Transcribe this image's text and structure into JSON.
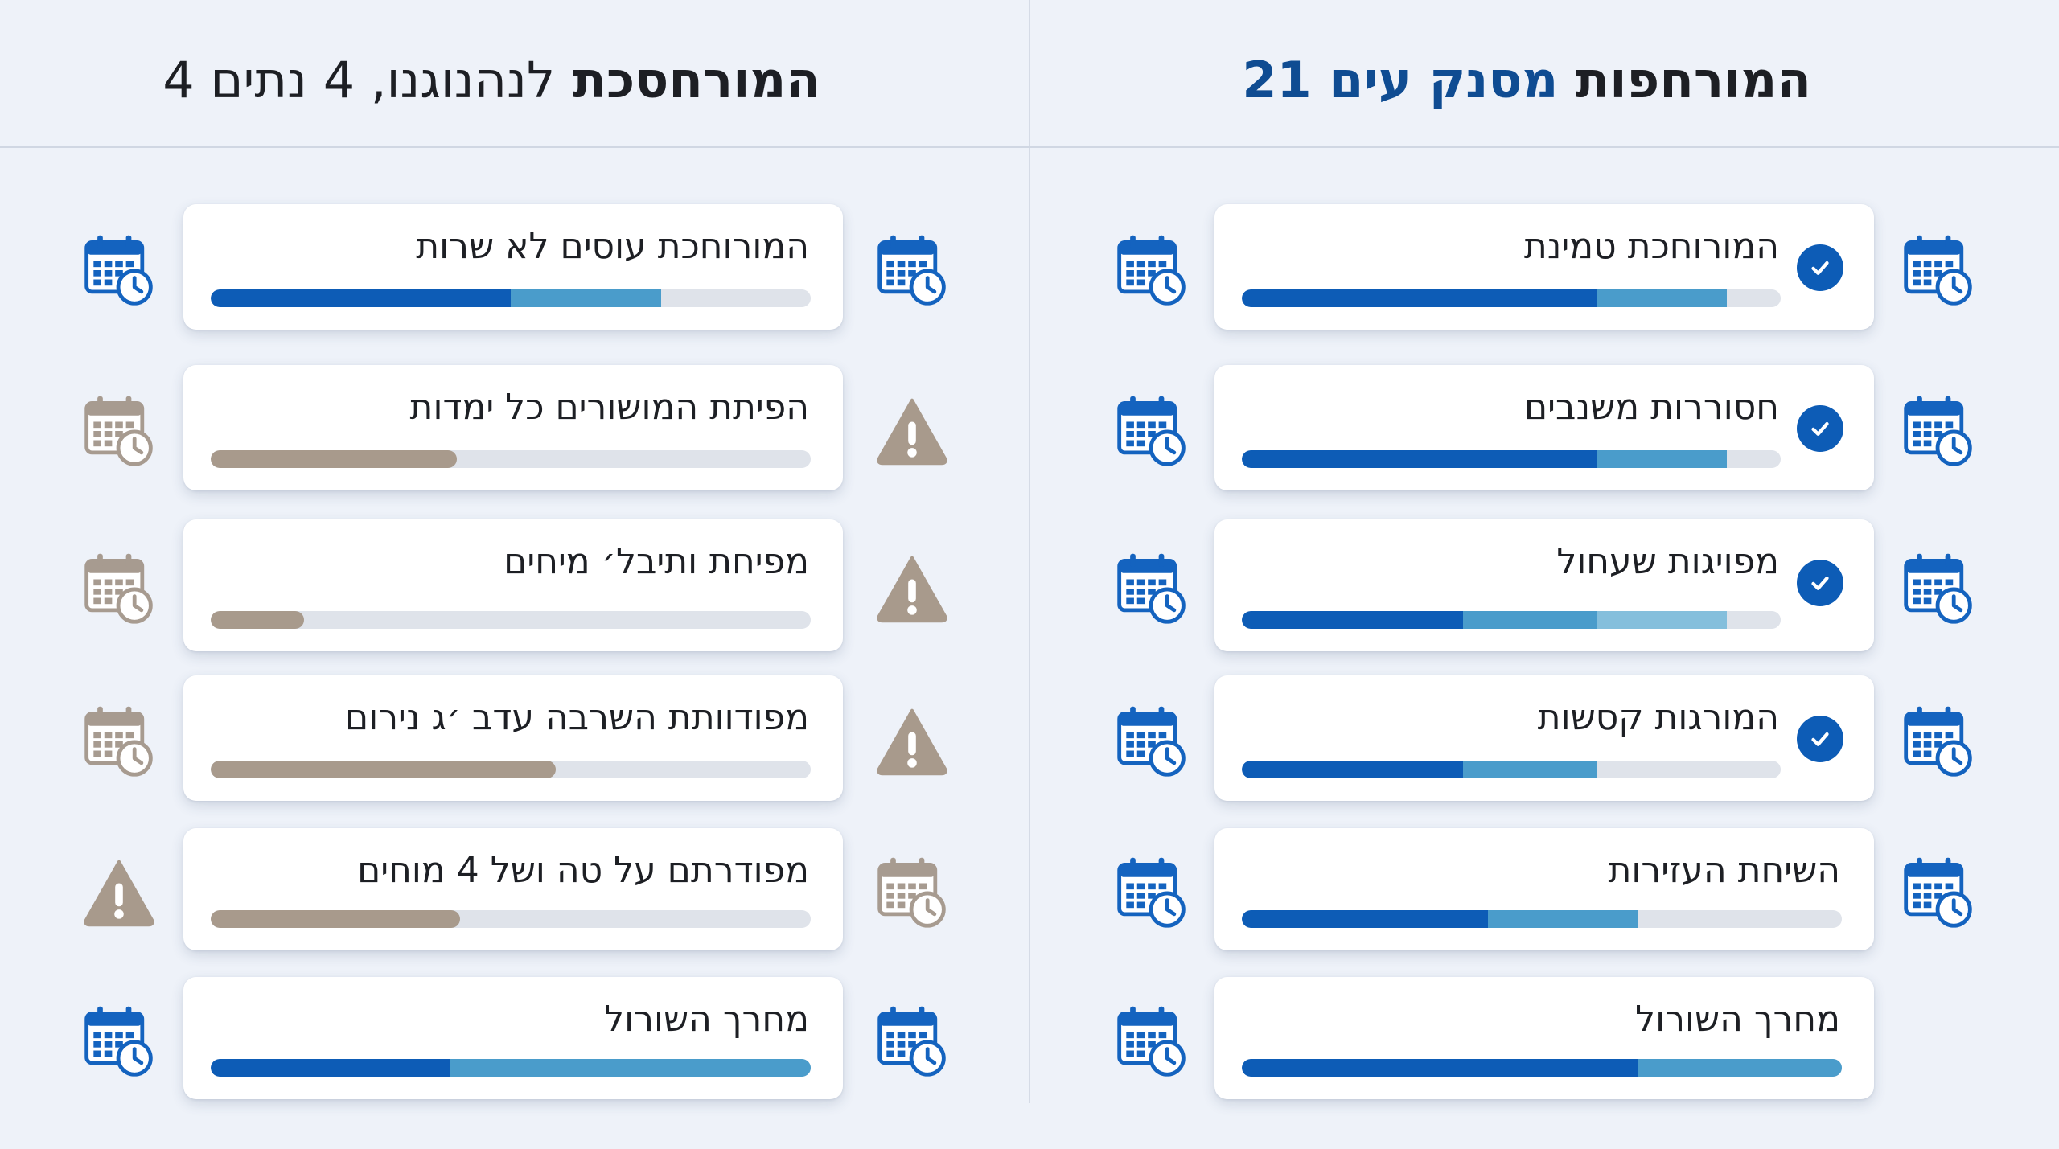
{
  "right_panel": {
    "header": {
      "part1": "המורחפות",
      "part2": "מסנק עים 21"
    },
    "items": [
      {
        "label": "המורוחכת טמינת",
        "checked": true,
        "outer_icon": "calendar-clock-blue-icon",
        "progress": {
          "dark": 0.66,
          "light": 0.9,
          "pale": 0.0
        }
      },
      {
        "label": "חסוררות משנבים",
        "checked": true,
        "outer_icon": "calendar-clock-blue-icon",
        "progress": {
          "dark": 0.66,
          "light": 0.9,
          "pale": 0.0
        }
      },
      {
        "label": "מפויגות שעחול",
        "checked": true,
        "outer_icon": "calendar-clock-blue-icon",
        "progress": {
          "dark": 0.41,
          "light": 0.66,
          "pale": 0.9
        }
      },
      {
        "label": "המורגות קסשות",
        "checked": true,
        "outer_icon": "calendar-clock-blue-icon",
        "progress": {
          "dark": 0.41,
          "light": 0.66,
          "pale": 0.0
        }
      },
      {
        "label": "השיחת העזירות",
        "checked": false,
        "outer_icon": "calendar-clock-blue-icon",
        "progress": {
          "dark": 0.41,
          "light": 0.66,
          "pale": 0.0
        }
      },
      {
        "label": "מחרך השורול",
        "checked": false,
        "outer_icon": "",
        "progress": {
          "dark": 0.66,
          "light": 1.0,
          "pale": 0.0
        }
      }
    ]
  },
  "left_panel": {
    "header": {
      "part1": "המורחסכת",
      "part2": "לנהנוגנו, 4 נתים 4"
    },
    "items": [
      {
        "label": "המורוחכת עוסים לא שרות",
        "inner_icon": "calendar-clock-blue-icon",
        "outer_icon": "calendar-clock-blue-icon",
        "progress": {
          "dark": 0.5,
          "light": 0.75,
          "tan": 0.0
        }
      },
      {
        "label": "הפיתת המושורים כל ימדות",
        "inner_icon": "warning-icon",
        "outer_icon": "calendar-clock-gray-icon",
        "progress": {
          "dark": 0.0,
          "light": 0.0,
          "tan": 0.41
        }
      },
      {
        "label": "מפיחת ותיבל׳ מיחים",
        "inner_icon": "warning-icon",
        "outer_icon": "calendar-clock-gray-icon",
        "progress": {
          "dark": 0.0,
          "light": 0.0,
          "tan": 0.155
        }
      },
      {
        "label": "מפודוותת השרבה עדב ׳ג נירום",
        "inner_icon": "warning-icon",
        "outer_icon": "calendar-clock-gray-icon",
        "progress": {
          "dark": 0.0,
          "light": 0.0,
          "tan": 0.575
        }
      },
      {
        "label": "מפודרתם על טה ושל 4 מוחים",
        "inner_icon": "calendar-clock-gray-icon",
        "outer_icon": "warning-icon",
        "progress": {
          "dark": 0.0,
          "light": 0.0,
          "tan": 0.415
        }
      },
      {
        "label": "מחרך השורול",
        "inner_icon": "calendar-clock-blue-icon",
        "outer_icon": "calendar-clock-blue-icon",
        "progress": {
          "dark": 0.4,
          "light": 1.0,
          "tan": 0.0
        }
      }
    ]
  },
  "colors": {
    "accent_blue": "#0d5cb6",
    "light_blue": "#4a9ccb",
    "pale_blue": "#85bfdc",
    "tan": "#a89a8c",
    "header_accent": "#0f4c92"
  }
}
